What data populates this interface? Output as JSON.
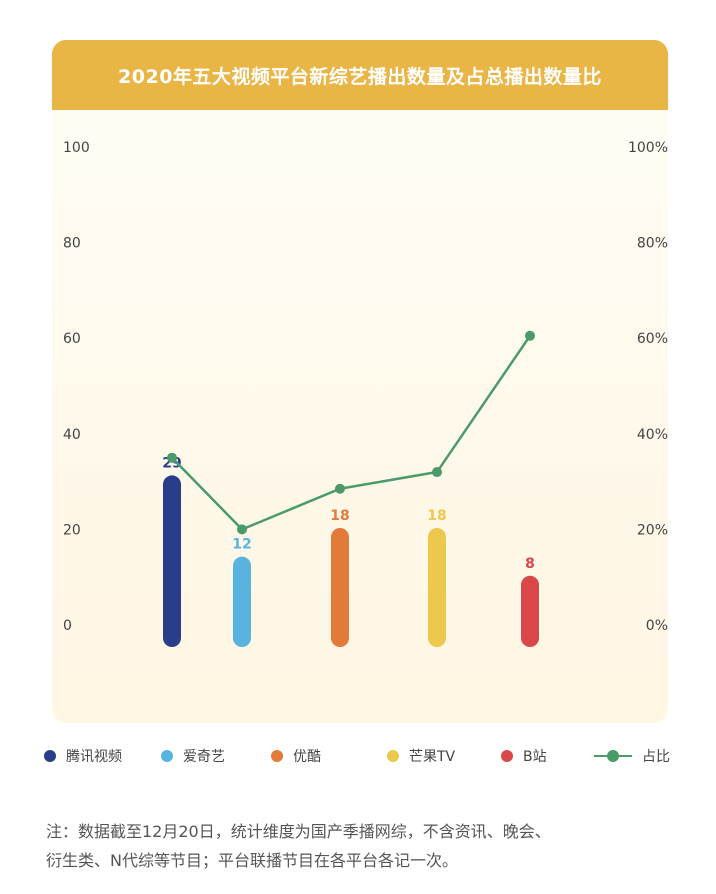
{
  "chart_data": {
    "type": "bar",
    "title": "2020年五大视频平台新综艺播出数量及占总播出数量比",
    "categories": [
      "腾讯视频",
      "爱奇艺",
      "优酷",
      "芒果TV",
      "B站"
    ],
    "series": [
      {
        "name": "播出数量",
        "type": "bar",
        "values": [
          29,
          12,
          18,
          18,
          8
        ],
        "colors": [
          "#2a3d8a",
          "#58b4de",
          "#e27a3a",
          "#ecc94c",
          "#d9474b"
        ]
      },
      {
        "name": "占比",
        "type": "line",
        "color": "#4a9a6a",
        "values": [
          35,
          20,
          28.5,
          32,
          60.5
        ]
      }
    ],
    "y_left": {
      "ylim": [
        0,
        100
      ],
      "ticks": [
        "0",
        "20",
        "40",
        "60",
        "80",
        "100"
      ]
    },
    "y_right": {
      "ylim": [
        0,
        100
      ],
      "ticks": [
        "0%",
        "20%",
        "40%",
        "60%",
        "80%",
        "100%"
      ]
    },
    "grid": false,
    "legend_position": "bottom"
  },
  "legend": {
    "items": [
      {
        "label": "腾讯视频",
        "color": "#2a3d8a"
      },
      {
        "label": "爱奇艺",
        "color": "#58b4de"
      },
      {
        "label": "优酷",
        "color": "#e27a3a"
      },
      {
        "label": "芒果TV",
        "color": "#ecc94c"
      },
      {
        "label": "B站",
        "color": "#d9474b"
      }
    ],
    "line_label": "占比",
    "line_color": "#4a9a6a"
  },
  "note": {
    "line1": "注：数据截至12月20日，统计维度为国产季播网综，不含资讯、晚会、",
    "line2": "衍生类、N代综等节目；平台联播节目在各平台各记一次。"
  }
}
